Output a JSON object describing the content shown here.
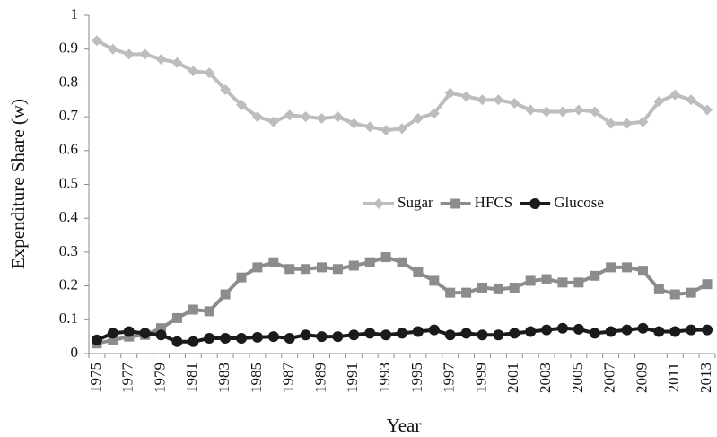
{
  "chart_data": {
    "type": "line",
    "x_label": "Year",
    "y_label": "Expenditure Share (w)",
    "categories": [
      "1975",
      null,
      "1977",
      null,
      "1979",
      null,
      "1981",
      null,
      "1983",
      null,
      "1985",
      null,
      "1987",
      null,
      "1989",
      null,
      "1991",
      null,
      "1993",
      null,
      "1995",
      null,
      "1997",
      null,
      "1999",
      null,
      "2001",
      null,
      "2003",
      null,
      "2005",
      null,
      "2007",
      null,
      "2009",
      null,
      "2011",
      null,
      "2013"
    ],
    "series": [
      {
        "name": "Sugar",
        "color": "#bdbdbd",
        "marker": "diamond",
        "values": [
          0.925,
          0.9,
          0.885,
          0.885,
          0.87,
          0.86,
          0.835,
          0.83,
          0.78,
          0.735,
          0.7,
          0.685,
          0.705,
          0.7,
          0.695,
          0.7,
          0.68,
          0.67,
          0.66,
          0.665,
          0.695,
          0.71,
          0.77,
          0.76,
          0.75,
          0.75,
          0.74,
          0.72,
          0.715,
          0.715,
          0.72,
          0.715,
          0.68,
          0.68,
          0.685,
          0.745,
          0.765,
          0.75,
          0.72
        ]
      },
      {
        "name": "HFCS",
        "color": "#8c8c8c",
        "marker": "square",
        "values": [
          0.03,
          0.04,
          0.05,
          0.055,
          0.075,
          0.105,
          0.13,
          0.125,
          0.175,
          0.225,
          0.255,
          0.27,
          0.25,
          0.25,
          0.255,
          0.25,
          0.26,
          0.27,
          0.285,
          0.27,
          0.24,
          0.215,
          0.18,
          0.18,
          0.195,
          0.19,
          0.195,
          0.215,
          0.22,
          0.21,
          0.21,
          0.23,
          0.255,
          0.255,
          0.245,
          0.19,
          0.175,
          0.18,
          0.205
        ]
      },
      {
        "name": "Glucose",
        "color": "#1a1a1a",
        "marker": "circle",
        "values": [
          0.04,
          0.06,
          0.065,
          0.06,
          0.055,
          0.035,
          0.035,
          0.045,
          0.045,
          0.045,
          0.048,
          0.05,
          0.045,
          0.055,
          0.05,
          0.05,
          0.055,
          0.06,
          0.055,
          0.06,
          0.065,
          0.07,
          0.055,
          0.06,
          0.055,
          0.055,
          0.06,
          0.065,
          0.07,
          0.075,
          0.072,
          0.06,
          0.065,
          0.07,
          0.075,
          0.065,
          0.065,
          0.07,
          0.07
        ]
      }
    ],
    "ylim": [
      0,
      1
    ],
    "yticks": [
      0,
      0.1,
      0.2,
      0.3,
      0.4,
      0.5,
      0.6,
      0.7,
      0.8,
      0.9,
      1
    ],
    "grid": false,
    "legend": "center-right"
  }
}
